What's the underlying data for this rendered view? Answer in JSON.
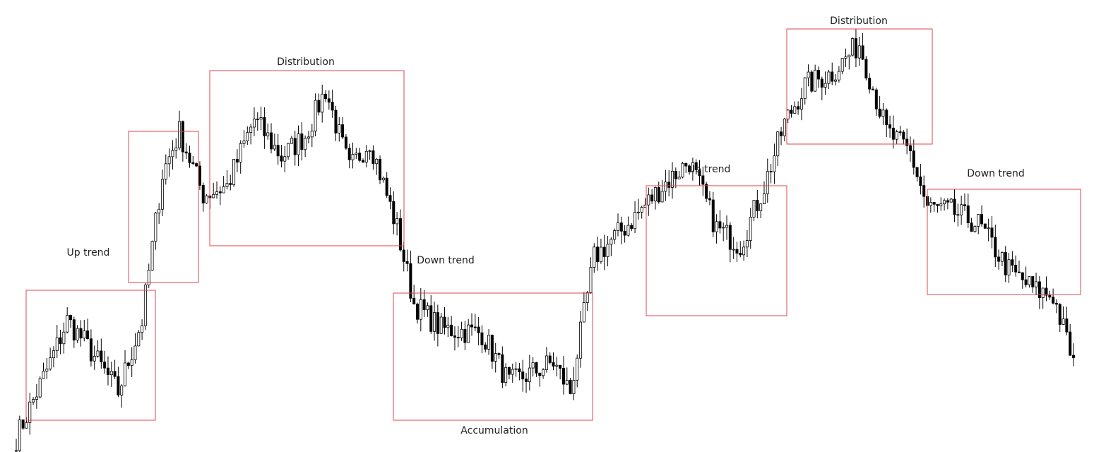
{
  "chart_data": {
    "type": "candlestick",
    "title": "",
    "xlabel": "",
    "ylabel": "",
    "grid": false,
    "legend": "none",
    "colors": {
      "candle": "#000000",
      "zone_border": "#e0454f",
      "label_text": "#222222"
    },
    "price_range": [
      0,
      100
    ],
    "candle_count": 312,
    "key_levels": [
      {
        "bar": 0,
        "close": 2
      },
      {
        "bar": 10,
        "close": 20
      },
      {
        "bar": 15,
        "close": 30
      },
      {
        "bar": 20,
        "close": 25
      },
      {
        "bar": 30,
        "close": 13
      },
      {
        "bar": 37,
        "close": 30
      },
      {
        "bar": 43,
        "close": 65
      },
      {
        "bar": 48,
        "close": 75
      },
      {
        "bar": 55,
        "close": 60
      },
      {
        "bar": 62,
        "close": 62
      },
      {
        "bar": 70,
        "close": 78
      },
      {
        "bar": 78,
        "close": 69
      },
      {
        "bar": 85,
        "close": 74
      },
      {
        "bar": 91,
        "close": 85
      },
      {
        "bar": 98,
        "close": 66
      },
      {
        "bar": 104,
        "close": 73
      },
      {
        "bar": 112,
        "close": 52
      },
      {
        "bar": 117,
        "close": 34
      },
      {
        "bar": 125,
        "close": 28
      },
      {
        "bar": 137,
        "close": 27
      },
      {
        "bar": 145,
        "close": 15
      },
      {
        "bar": 158,
        "close": 20
      },
      {
        "bar": 163,
        "close": 13
      },
      {
        "bar": 170,
        "close": 45
      },
      {
        "bar": 180,
        "close": 53
      },
      {
        "bar": 190,
        "close": 62
      },
      {
        "bar": 198,
        "close": 68
      },
      {
        "bar": 206,
        "close": 52
      },
      {
        "bar": 213,
        "close": 48
      },
      {
        "bar": 220,
        "close": 62
      },
      {
        "bar": 226,
        "close": 77
      },
      {
        "bar": 232,
        "close": 86
      },
      {
        "bar": 240,
        "close": 89
      },
      {
        "bar": 248,
        "close": 96
      },
      {
        "bar": 256,
        "close": 75
      },
      {
        "bar": 263,
        "close": 70
      },
      {
        "bar": 268,
        "close": 57
      },
      {
        "bar": 275,
        "close": 56
      },
      {
        "bar": 283,
        "close": 53
      },
      {
        "bar": 292,
        "close": 42
      },
      {
        "bar": 300,
        "close": 37
      },
      {
        "bar": 305,
        "close": 36
      },
      {
        "bar": 311,
        "close": 20
      }
    ],
    "phases": [
      {
        "label": "Up trend",
        "start_bar": 3,
        "end_bar": 39
      },
      {
        "label": "",
        "start_bar": 36,
        "end_bar": 53
      },
      {
        "label": "Distribution",
        "start_bar": 59,
        "end_bar": 114
      },
      {
        "label": "Down trend",
        "start_bar": 110,
        "end_bar": 120
      },
      {
        "label": "Accumulation",
        "start_bar": 111,
        "end_bar": 167
      },
      {
        "label": "Up trend",
        "start_bar": 182,
        "end_bar": 222
      },
      {
        "label": "Distribution",
        "start_bar": 222,
        "end_bar": 263
      },
      {
        "label": "Down trend",
        "start_bar": 262,
        "end_bar": 305
      }
    ]
  }
}
